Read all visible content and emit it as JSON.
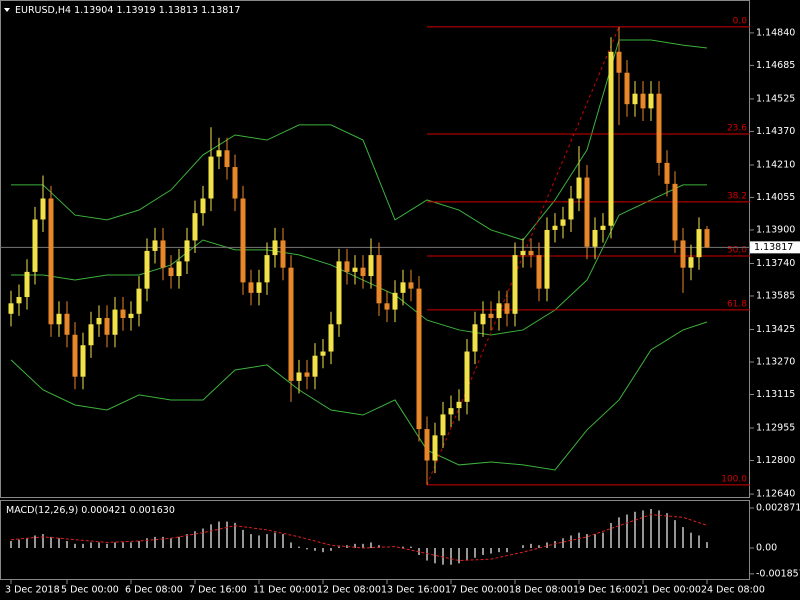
{
  "chart_data": {
    "type": "candlestick",
    "symbol": "EURUSD,H4",
    "bull_color": "#f2e24a",
    "bear_color": "#e8862a",
    "categories": [
      "3 Dec 2018",
      null,
      null,
      null,
      null,
      null,
      null,
      "5 Dec 00:00",
      null,
      null,
      null,
      null,
      null,
      null,
      null,
      "6 Dec 08:00",
      null,
      null,
      null,
      null,
      null,
      null,
      null,
      "7 Dec 16:00",
      null,
      null,
      null,
      null,
      null,
      null,
      null,
      "11 Dec 00:00",
      null,
      null,
      null,
      null,
      null,
      null,
      null,
      "12 Dec 08:00",
      null,
      null,
      null,
      null,
      null,
      null,
      null,
      "13 Dec 16:00",
      null,
      null,
      null,
      null,
      null,
      null,
      null,
      "17 Dec 00:00",
      null,
      null,
      null,
      null,
      null,
      null,
      null,
      "18 Dec 08:00",
      null,
      null,
      null,
      null,
      null,
      null,
      null,
      "19 Dec 16:00",
      null,
      null,
      null,
      null,
      null,
      null,
      null,
      "21 Dec 00:00",
      null,
      null,
      null,
      null,
      null,
      null,
      null,
      "24 Dec 08:00"
    ],
    "open": [
      1.135,
      1.1355,
      1.1358,
      1.137,
      1.1395,
      1.1405,
      1.1345,
      1.135,
      1.134,
      1.132,
      1.1335,
      1.1345,
      1.1348,
      1.134,
      1.1352,
      1.1348,
      1.135,
      1.1362,
      1.138,
      1.1385,
      1.1372,
      1.1368,
      1.1375,
      1.1385,
      1.1398,
      1.1405,
      1.1425,
      1.1428,
      1.142,
      1.1405,
      1.1365,
      1.136,
      1.1365,
      1.1378,
      1.1385,
      1.1372,
      1.1318,
      1.1322,
      1.132,
      1.133,
      1.1332,
      1.1345,
      1.1375,
      1.137,
      1.1372,
      1.1368,
      1.1378,
      1.1355,
      1.1352,
      1.136,
      1.1365,
      1.1362,
      1.1295,
      1.128,
      1.1292,
      1.1302,
      1.1305,
      1.1308,
      1.1332,
      1.1345,
      1.135,
      1.1348,
      1.1355,
      1.135,
      1.1378,
      1.138,
      1.1378,
      1.1362,
      1.139,
      1.1392,
      1.1395,
      1.1405,
      1.1415,
      1.1382,
      1.139,
      1.1392,
      1.1475,
      1.1465,
      1.145,
      1.1455,
      1.1448,
      1.1455,
      1.1422,
      1.1412,
      1.1385,
      1.1372,
      1.1377,
      1.13904
    ],
    "high": [
      1.1361,
      1.1364,
      1.1376,
      1.1401,
      1.1416,
      1.1411,
      1.1356,
      1.1356,
      1.1346,
      1.1341,
      1.1351,
      1.1354,
      1.1354,
      1.1358,
      1.1358,
      1.1356,
      1.1368,
      1.1386,
      1.1391,
      1.1391,
      1.1378,
      1.1381,
      1.1391,
      1.1404,
      1.1411,
      1.1439,
      1.1434,
      1.1434,
      1.1426,
      1.1411,
      1.1371,
      1.1371,
      1.1384,
      1.1391,
      1.1391,
      1.1378,
      1.1328,
      1.1328,
      1.1336,
      1.1338,
      1.1351,
      1.1381,
      1.1381,
      1.1378,
      1.1378,
      1.1386,
      1.1384,
      1.1361,
      1.1366,
      1.1371,
      1.1371,
      1.1368,
      1.1301,
      1.1298,
      1.1308,
      1.1311,
      1.1314,
      1.1338,
      1.1351,
      1.1356,
      1.1356,
      1.1361,
      1.1361,
      1.1384,
      1.1386,
      1.1386,
      1.1384,
      1.1396,
      1.1398,
      1.1401,
      1.1411,
      1.143,
      1.1421,
      1.1396,
      1.1398,
      1.1482,
      1.14869,
      1.1471,
      1.1461,
      1.1461,
      1.1461,
      1.1461,
      1.1428,
      1.1418,
      1.1391,
      1.1383,
      1.1396,
      1.13919
    ],
    "low": [
      1.1344,
      1.1349,
      1.1352,
      1.1364,
      1.1389,
      1.1339,
      1.1339,
      1.1334,
      1.1314,
      1.1314,
      1.1329,
      1.1339,
      1.1334,
      1.1334,
      1.1342,
      1.1342,
      1.1344,
      1.1356,
      1.1374,
      1.1366,
      1.1362,
      1.1362,
      1.1369,
      1.1379,
      1.1392,
      1.1399,
      1.1419,
      1.1414,
      1.1399,
      1.1359,
      1.1354,
      1.1354,
      1.1359,
      1.1372,
      1.1366,
      1.1308,
      1.1312,
      1.1314,
      1.1314,
      1.1324,
      1.1326,
      1.1339,
      1.1364,
      1.1364,
      1.1362,
      1.1362,
      1.1349,
      1.1346,
      1.1346,
      1.1354,
      1.1356,
      1.1289,
      1.12684,
      1.1274,
      1.1286,
      1.1296,
      1.1299,
      1.1302,
      1.1326,
      1.1339,
      1.1342,
      1.1342,
      1.1344,
      1.1344,
      1.1372,
      1.1372,
      1.1356,
      1.1356,
      1.1384,
      1.1386,
      1.1389,
      1.1399,
      1.1376,
      1.1376,
      1.1384,
      1.1386,
      1.144,
      1.1444,
      1.1444,
      1.1442,
      1.1442,
      1.1416,
      1.1406,
      1.1379,
      1.136,
      1.1366,
      1.1371,
      1.13813
    ],
    "close": [
      1.1355,
      1.1358,
      1.137,
      1.1395,
      1.1405,
      1.1345,
      1.135,
      1.134,
      1.132,
      1.1335,
      1.1345,
      1.1348,
      1.134,
      1.1352,
      1.1348,
      1.135,
      1.1362,
      1.138,
      1.1385,
      1.1372,
      1.1368,
      1.1375,
      1.1385,
      1.1398,
      1.1405,
      1.1425,
      1.1428,
      1.142,
      1.1405,
      1.1365,
      1.136,
      1.1365,
      1.1378,
      1.1385,
      1.1372,
      1.1318,
      1.1322,
      1.132,
      1.133,
      1.1332,
      1.1345,
      1.1375,
      1.137,
      1.1372,
      1.1368,
      1.1378,
      1.1355,
      1.1352,
      1.136,
      1.1365,
      1.1362,
      1.1295,
      1.128,
      1.1292,
      1.1302,
      1.1305,
      1.1308,
      1.1332,
      1.1345,
      1.135,
      1.1348,
      1.1355,
      1.135,
      1.1378,
      1.138,
      1.1378,
      1.1362,
      1.139,
      1.1392,
      1.1395,
      1.1405,
      1.1415,
      1.1382,
      1.139,
      1.1392,
      1.1475,
      1.1465,
      1.145,
      1.1455,
      1.1448,
      1.1455,
      1.1422,
      1.1412,
      1.1385,
      1.1372,
      1.1377,
      1.13904,
      1.13817
    ],
    "ylim": [
      1.12626,
      1.14997
    ],
    "yticks": [
      {
        "value": 1.1484,
        "label": "1.14840"
      },
      1.14685,
      1.14525,
      {
        "value": 1.1437,
        "label": "1.14370"
      },
      {
        "value": 1.1421,
        "label": "1.14210"
      },
      1.14055,
      {
        "value": 1.139,
        "label": "1.13900"
      },
      {
        "value": 1.1374,
        "label": "1.13740"
      },
      1.13585,
      1.13425,
      {
        "value": 1.1327,
        "label": "1.13270"
      },
      1.13115,
      1.12955,
      {
        "value": 1.128,
        "label": "1.12800"
      },
      {
        "value": 1.1264,
        "label": "1.12640"
      }
    ],
    "bands": {
      "color": "#3cb33c",
      "x": [
        0,
        4,
        8,
        12,
        16,
        20,
        24,
        28,
        32,
        36,
        40,
        44,
        48,
        52,
        56,
        60,
        64,
        68,
        72,
        76,
        80,
        84,
        87
      ],
      "upper": [
        1.14115,
        1.14115,
        1.13971,
        1.13948,
        1.13995,
        1.14091,
        1.14258,
        1.14353,
        1.14329,
        1.14401,
        1.14401,
        1.14329,
        1.13948,
        1.14043,
        1.13995,
        1.139,
        1.13852,
        1.14043,
        1.14282,
        1.14806,
        1.14806,
        1.14782,
        1.14768
      ],
      "middle": [
        1.13685,
        1.13685,
        1.13661,
        1.13685,
        1.13685,
        1.13733,
        1.13852,
        1.13805,
        1.13805,
        1.13781,
        1.13733,
        1.13661,
        1.1359,
        1.1347,
        1.13423,
        1.13399,
        1.13423,
        1.13518,
        1.13661,
        1.13971,
        1.14043,
        1.14115,
        1.14115
      ],
      "lower": [
        1.1328,
        1.13137,
        1.13065,
        1.13041,
        1.13113,
        1.13089,
        1.13089,
        1.13232,
        1.13256,
        1.13137,
        1.13041,
        1.13017,
        1.13089,
        1.1285,
        1.12779,
        1.12793,
        1.12779,
        1.12755,
        1.12946,
        1.13089,
        1.13328,
        1.13423,
        1.13461
      ]
    },
    "fibo": {
      "color": "#d00000",
      "start": 52,
      "end": 76,
      "levels": [
        {
          "label": "0.0",
          "price": 1.14869
        },
        {
          "label": "23.6",
          "price": 1.14358
        },
        {
          "label": "38.2",
          "price": 1.14034
        },
        {
          "label": "50.0",
          "price": 1.13776
        },
        {
          "label": "61.8",
          "price": 1.13519
        },
        {
          "label": "100.0",
          "price": 1.12684
        }
      ]
    },
    "macd": {
      "name": "MACD(12,26,9)",
      "hist_color": "#c8c8c8",
      "signal_color": "#e02020",
      "values": [
        0.0005,
        0.0006,
        0.0007,
        0.0009,
        0.001,
        0.0008,
        0.0007,
        0.0005,
        0.0003,
        0.0003,
        0.0004,
        0.0004,
        0.0003,
        0.0004,
        0.0004,
        0.0004,
        0.0005,
        0.0007,
        0.0008,
        0.0008,
        0.0007,
        0.0008,
        0.001,
        0.0012,
        0.0014,
        0.0017,
        0.0019,
        0.0019,
        0.0018,
        0.0013,
        0.001,
        0.0009,
        0.001,
        0.0011,
        0.001,
        0.0004,
        0.0001,
        -0.0001,
        -0.0002,
        -0.0003,
        -0.0002,
        0.0001,
        0.0002,
        0.0003,
        0.0003,
        0.0004,
        0.0002,
        0,
        0,
        0.0001,
        0.0001,
        -0.0005,
        -0.0009,
        -0.0011,
        -0.0012,
        -0.0012,
        -0.0011,
        -0.0009,
        -0.0007,
        -0.0005,
        -0.0004,
        -0.0003,
        -0.0003,
        0,
        0.0002,
        0.0003,
        0.0002,
        0.0004,
        0.0005,
        0.0007,
        0.0009,
        0.0011,
        0.001,
        0.001,
        0.0011,
        0.0018,
        0.0022,
        0.0024,
        0.0026,
        0.0027,
        0.0028,
        0.0027,
        0.0025,
        0.002,
        0.0015,
        0.0011,
        0.0009,
        0.000421
      ],
      "signal": {
        "x": [
          0,
          4,
          8,
          12,
          16,
          20,
          24,
          28,
          32,
          36,
          40,
          44,
          48,
          52,
          56,
          60,
          64,
          68,
          72,
          76,
          80,
          84,
          87
        ],
        "values": [
          0.0006,
          0.0008,
          0.0006,
          0.0004,
          0.0005,
          0.0007,
          0.0011,
          0.0016,
          0.0013,
          0.0008,
          0.0002,
          0,
          0.0001,
          -0.0004,
          -0.0009,
          -0.0008,
          -0.0003,
          0.0003,
          0.0008,
          0.0016,
          0.0024,
          0.0022,
          0.00163
        ],
        "value_labels": [
          null,
          null,
          null,
          null,
          null,
          null,
          null,
          null,
          null,
          null,
          null,
          null,
          null,
          null,
          null,
          null,
          null,
          null,
          null,
          null,
          null,
          null,
          "0.001630"
        ]
      },
      "ylim": [
        -0.002297,
        0.003445
      ],
      "yticks": [
        0.002871,
        {
          "value": 0,
          "label": "0.00"
        },
        -0.001857
      ]
    }
  }
}
